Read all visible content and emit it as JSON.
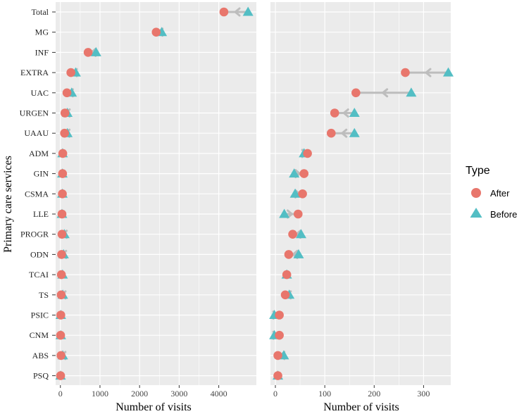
{
  "chart_data": [
    {
      "type": "scatter",
      "xlabel": "Number of visits",
      "ylabel": "Primary care services",
      "xlim": [
        -120,
        4950
      ],
      "xticks": [
        0,
        1000,
        2000,
        3000,
        4000
      ],
      "xtick_labels": [
        "0",
        "1000",
        "2000",
        "3000",
        "4000"
      ],
      "grid": true,
      "categories": [
        "Total",
        "MG",
        "INF",
        "EXTRA",
        "UAC",
        "URGEN",
        "UAAU",
        "ADM",
        "GIN",
        "CSMA",
        "LLE",
        "PROGR",
        "ODN",
        "TCAI",
        "TS",
        "PSIC",
        "CNM",
        "ABS",
        "PSQ"
      ],
      "series": [
        {
          "name": "After",
          "values": [
            4130,
            2420,
            700,
            265,
            165,
            115,
            105,
            60,
            55,
            50,
            40,
            40,
            30,
            25,
            20,
            10,
            5,
            15,
            5
          ]
        },
        {
          "name": "Before",
          "values": [
            4740,
            2560,
            900,
            385,
            285,
            175,
            175,
            55,
            50,
            50,
            40,
            100,
            80,
            55,
            60,
            10,
            10,
            60,
            5
          ]
        }
      ]
    },
    {
      "type": "scatter",
      "xlabel": "Number of visits",
      "xlim": [
        -10,
        355
      ],
      "xticks": [
        0,
        100,
        200,
        300
      ],
      "xtick_labels": [
        "0",
        "100",
        "200",
        "300"
      ],
      "grid": true,
      "categories": [
        "Total",
        "MG",
        "INF",
        "EXTRA",
        "UAC",
        "URGEN",
        "UAAU",
        "ADM",
        "GIN",
        "CSMA",
        "LLE",
        "PROGR",
        "ODN",
        "TCAI",
        "TS",
        "PSIC",
        "CNM",
        "ABS",
        "PSQ"
      ],
      "series": [
        {
          "name": "After",
          "values": [
            null,
            null,
            null,
            263,
            163,
            120,
            113,
            65,
            58,
            55,
            46,
            35,
            27,
            23,
            20,
            8,
            8,
            5,
            5
          ]
        },
        {
          "name": "Before",
          "values": [
            null,
            null,
            null,
            350,
            275,
            160,
            160,
            58,
            38,
            40,
            18,
            52,
            47,
            23,
            28,
            -2,
            -2,
            17,
            5
          ]
        }
      ]
    }
  ],
  "axis_title_y": "Primary care services",
  "legend": {
    "title": "Type",
    "items": [
      {
        "label": "After",
        "color": "#E8766C",
        "shape": "circle"
      },
      {
        "label": "Before",
        "color": "#53BEC4",
        "shape": "triangle"
      }
    ],
    "placement": "right"
  },
  "colors": {
    "after": "#E8766C",
    "before": "#53BEC4",
    "arrow": "#BDBDBD",
    "panel": "#EBEBEB",
    "grid": "#FFFFFF"
  }
}
